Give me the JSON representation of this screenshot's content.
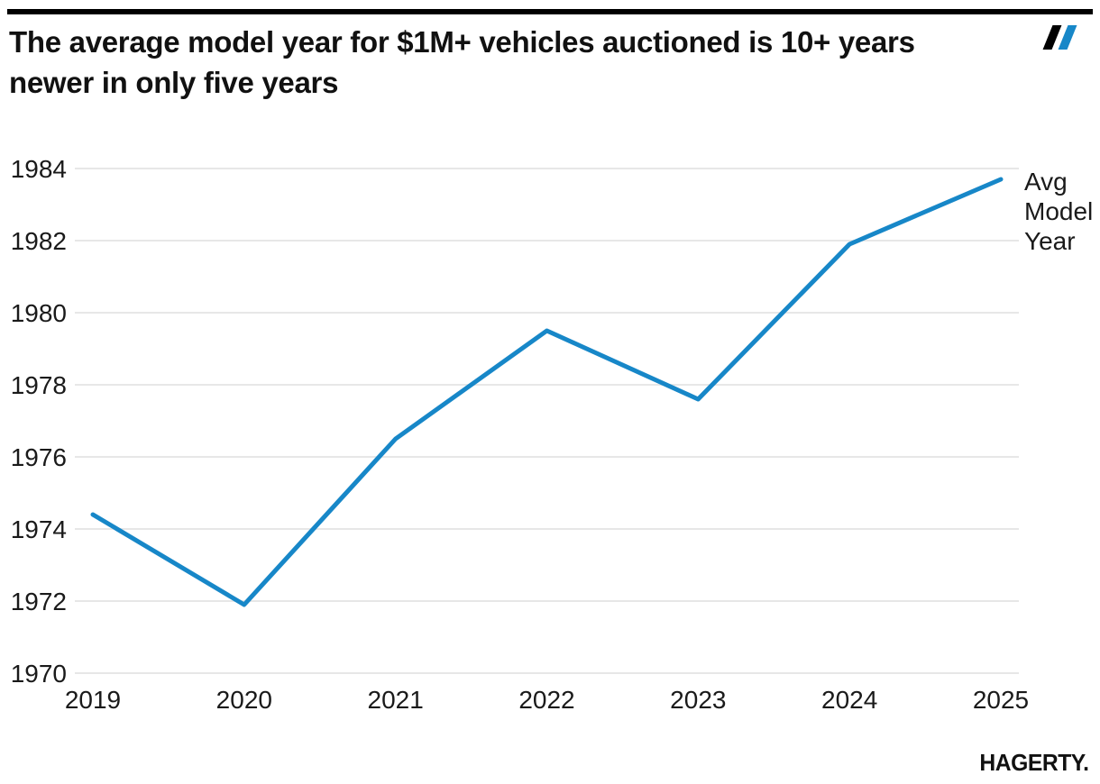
{
  "header": {
    "title_line1": "The average model year for $1M+ vehicles auctioned is 10+ years",
    "title_line2": "newer in only five years"
  },
  "chart_data": {
    "type": "line",
    "title": "The average model year for $1M+ vehicles auctioned is 10+ years newer in only five years",
    "x": [
      2019,
      2020,
      2021,
      2022,
      2023,
      2024,
      2025
    ],
    "series": [
      {
        "name": "Avg Model Year",
        "values": [
          1974.4,
          1971.9,
          1976.5,
          1979.5,
          1977.6,
          1981.9,
          1983.7
        ],
        "color": "#1787c8"
      }
    ],
    "xlabel": "",
    "ylabel": "Avg Model Year",
    "ylim": [
      1970,
      1984
    ],
    "yticks": [
      1970,
      1972,
      1974,
      1976,
      1978,
      1980,
      1982,
      1984
    ],
    "grid": true,
    "gridline_color": "#e7e7e7",
    "axis_text_color": "#1a1a1a",
    "legend_lines": [
      "Avg",
      "Model",
      "Year"
    ],
    "legend_position": "right-of-last-point"
  },
  "footer": {
    "brand": "HAGERTY."
  },
  "colors": {
    "accent_blue": "#1787c8",
    "bar_black": "#000000",
    "text": "#111111"
  }
}
